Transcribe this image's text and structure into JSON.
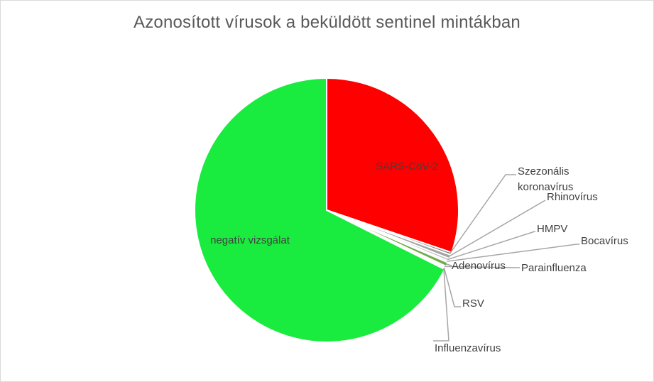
{
  "chart_data": {
    "type": "pie",
    "title": "Azonosított vírusok a beküldött sentinel mintákban",
    "slices": [
      {
        "label": "SARS-CoV-2",
        "value": 30.2,
        "color": "#ff0000"
      },
      {
        "label": "Szezonális koronavírus",
        "value": 0.3,
        "color": "#7f7f7f"
      },
      {
        "label": "Rhinovírus",
        "value": 0.5,
        "color": "#a5a5a5"
      },
      {
        "label": "HMPV",
        "value": 0.3,
        "color": "#b4b4b4"
      },
      {
        "label": "Bocavírus",
        "value": 0.2,
        "color": "#c8c8c8"
      },
      {
        "label": "Adenovírus",
        "value": 0.5,
        "color": "#70ad47"
      },
      {
        "label": "Parainfluenza",
        "value": 0.2,
        "color": "#9dc3e6"
      },
      {
        "label": "RSV",
        "value": 0.1,
        "color": "#5b9bd5"
      },
      {
        "label": "Influenzavírus",
        "value": 0.1,
        "color": "#ffc000"
      },
      {
        "label": "negatív vizsgálat",
        "value": 67.6,
        "color": "#1aeb3f"
      }
    ],
    "legend": "none"
  }
}
